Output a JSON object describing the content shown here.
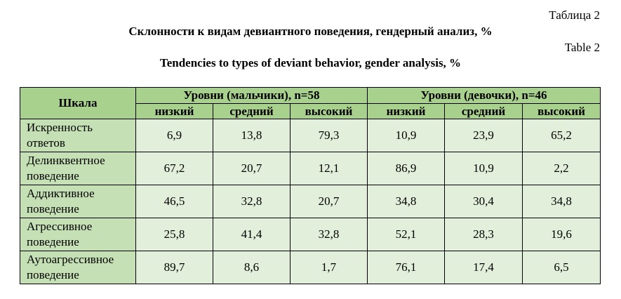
{
  "captions": {
    "table_label_ru": "Таблица 2",
    "title_ru": "Склонности к видам девиантного поведения, гендерный анализ, %",
    "table_label_en": "Table 2",
    "title_en": "Tendencies to types of deviant behavior, gender analysis, %"
  },
  "table": {
    "scale_header": "Шкала",
    "group_boys": "Уровни (мальчики), n=58",
    "group_girls": "Уровни (девочки), n=46",
    "level_headers": [
      "низкий",
      "средний",
      "высокий",
      "низкий",
      "средний",
      "высокий"
    ],
    "rows": [
      {
        "label_line1": "Искренность",
        "label_line2": "ответов",
        "values": [
          "6,9",
          "13,8",
          "79,3",
          "10,9",
          "23,9",
          "65,2"
        ]
      },
      {
        "label_line1": "Делинквентное",
        "label_line2": "поведение",
        "values": [
          "67,2",
          "20,7",
          "12,1",
          "86,9",
          "10,9",
          "2,2"
        ]
      },
      {
        "label_line1": "Аддиктивное",
        "label_line2": "поведение",
        "values": [
          "46,5",
          "32,8",
          "20,7",
          "34,8",
          "30,4",
          "34,8"
        ]
      },
      {
        "label_line1": "Агрессивное",
        "label_line2": "поведение",
        "values": [
          "25,8",
          "41,4",
          "32,8",
          "52,1",
          "28,3",
          "19,6"
        ]
      },
      {
        "label_line1": "Аутоагрессивное",
        "label_line2": "поведение",
        "values": [
          "89,7",
          "8,6",
          "1,7",
          "76,1",
          "17,4",
          "6,5"
        ]
      }
    ]
  },
  "colors": {
    "header_fill": "#a9d18e",
    "label_column_fill": "#c5e0b4",
    "body_fill": "#e2efda"
  }
}
